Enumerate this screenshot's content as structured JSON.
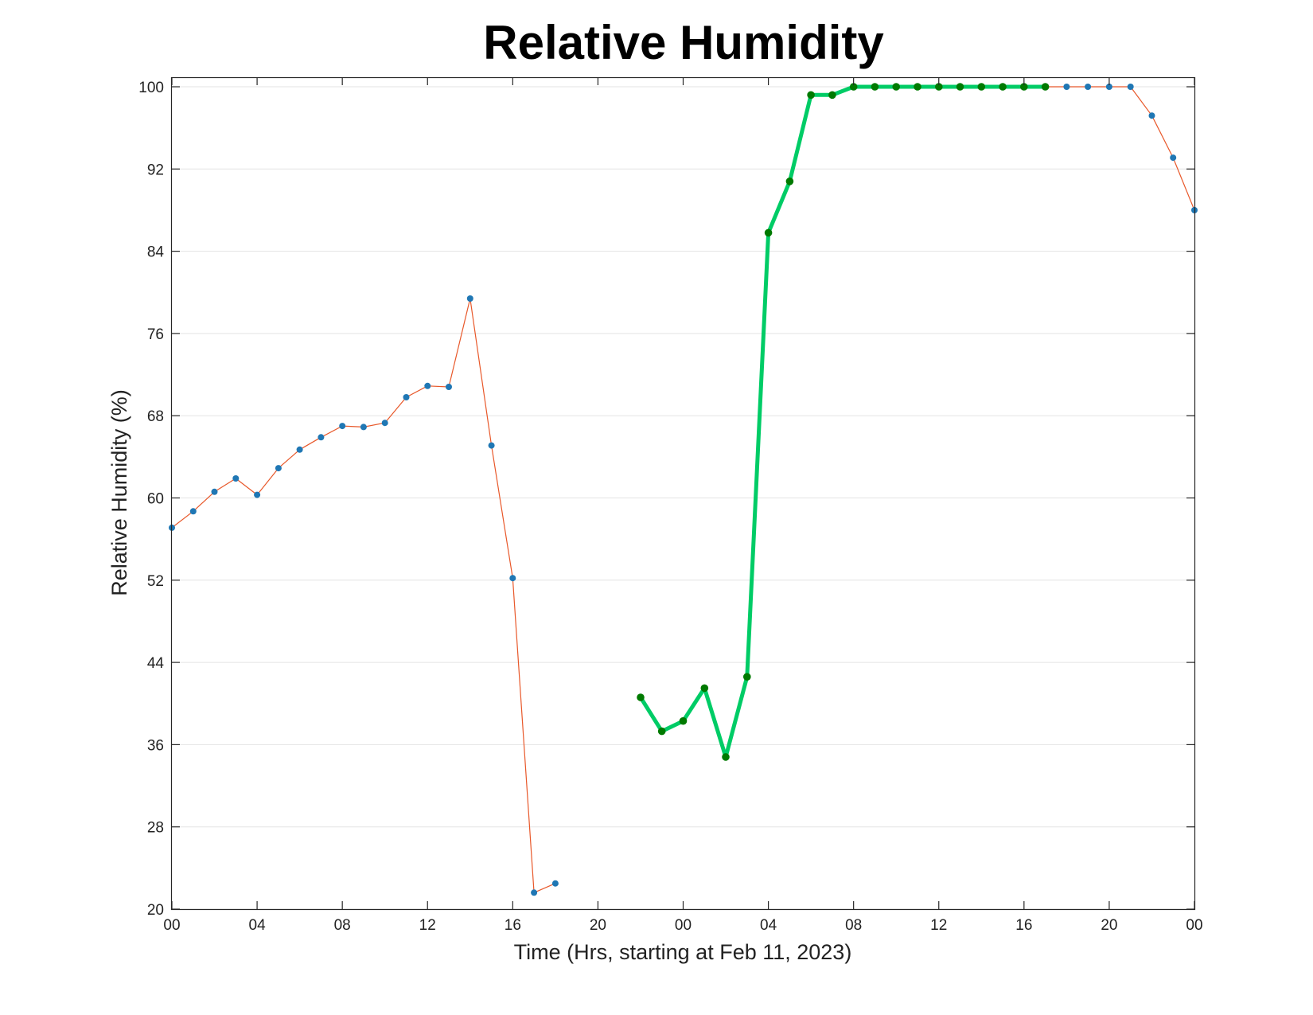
{
  "chart_data": {
    "type": "line",
    "title": "Relative Humidity",
    "xlabel": "Time (Hrs, starting at Feb 11, 2023)",
    "ylabel": "Relative Humidity (%)",
    "x_unit": "hours",
    "xlim": [
      0,
      48
    ],
    "ylim": [
      20,
      100
    ],
    "grid": true,
    "x_ticks": [
      {
        "value": 0,
        "label": "00"
      },
      {
        "value": 4,
        "label": "04"
      },
      {
        "value": 8,
        "label": "08"
      },
      {
        "value": 12,
        "label": "12"
      },
      {
        "value": 16,
        "label": "16"
      },
      {
        "value": 20,
        "label": "20"
      },
      {
        "value": 24,
        "label": "00"
      },
      {
        "value": 28,
        "label": "04"
      },
      {
        "value": 32,
        "label": "08"
      },
      {
        "value": 36,
        "label": "12"
      },
      {
        "value": 40,
        "label": "16"
      },
      {
        "value": 44,
        "label": "20"
      },
      {
        "value": 48,
        "label": "00"
      }
    ],
    "y_ticks": [
      20,
      28,
      36,
      44,
      52,
      60,
      68,
      76,
      84,
      92,
      100
    ],
    "series": [
      {
        "line_color": "#e8582a",
        "marker_color": "#1f77b4",
        "line_width": 1.2,
        "segments": [
          [
            [
              0,
              57.1
            ],
            [
              1,
              58.7
            ],
            [
              2,
              60.6
            ],
            [
              3,
              61.9
            ],
            [
              4,
              60.3
            ],
            [
              5,
              62.9
            ],
            [
              6,
              64.7
            ],
            [
              7,
              65.9
            ],
            [
              8,
              67.0
            ],
            [
              9,
              66.9
            ],
            [
              10,
              67.3
            ],
            [
              11,
              69.8
            ],
            [
              12,
              70.9
            ],
            [
              13,
              70.8
            ],
            [
              14,
              79.4
            ],
            [
              15,
              65.1
            ],
            [
              16,
              52.2
            ],
            [
              17,
              21.6
            ],
            [
              18,
              22.5
            ]
          ],
          [
            [
              22,
              40.6
            ],
            [
              23,
              37.3
            ],
            [
              24,
              38.3
            ],
            [
              25,
              41.5
            ],
            [
              26,
              34.8
            ],
            [
              27,
              42.6
            ],
            [
              28,
              85.8
            ],
            [
              29,
              90.8
            ],
            [
              30,
              99.2
            ],
            [
              31,
              99.2
            ],
            [
              32,
              100
            ],
            [
              33,
              100
            ],
            [
              34,
              100
            ],
            [
              35,
              100
            ],
            [
              36,
              100
            ],
            [
              37,
              100
            ],
            [
              38,
              100
            ],
            [
              39,
              100
            ],
            [
              40,
              100
            ],
            [
              41,
              100
            ],
            [
              42,
              100
            ],
            [
              43,
              100
            ],
            [
              44,
              100
            ],
            [
              45,
              100
            ],
            [
              46,
              97.2
            ],
            [
              47,
              93.1
            ],
            [
              48,
              88.0
            ]
          ]
        ]
      },
      {
        "line_color": "#00cc66",
        "marker_color": "#007a00",
        "line_width": 5,
        "segments": [
          [
            [
              22,
              40.6
            ],
            [
              23,
              37.3
            ],
            [
              24,
              38.3
            ],
            [
              25,
              41.5
            ],
            [
              26,
              34.8
            ],
            [
              27,
              42.6
            ],
            [
              28,
              85.8
            ],
            [
              29,
              90.8
            ],
            [
              30,
              99.2
            ],
            [
              31,
              99.2
            ],
            [
              32,
              100
            ],
            [
              33,
              100
            ],
            [
              34,
              100
            ],
            [
              35,
              100
            ],
            [
              36,
              100
            ],
            [
              37,
              100
            ],
            [
              38,
              100
            ],
            [
              39,
              100
            ],
            [
              40,
              100
            ],
            [
              41,
              100
            ]
          ]
        ]
      }
    ]
  }
}
